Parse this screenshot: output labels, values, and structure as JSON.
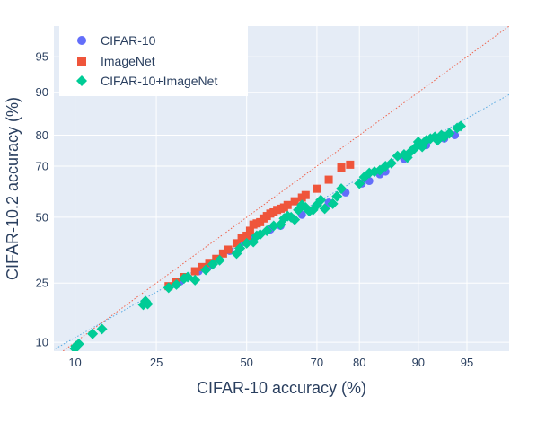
{
  "chart_data": {
    "type": "scatter",
    "title": "",
    "xlabel": "CIFAR-10 accuracy (%)",
    "ylabel": "CIFAR-10.2 accuracy (%)",
    "scale": "probit",
    "xlim": [
      7.5,
      97.5
    ],
    "ylim": [
      8.5,
      97.5
    ],
    "x_ticks": [
      10,
      25,
      50,
      70,
      80,
      90,
      95
    ],
    "y_ticks": [
      10,
      25,
      50,
      70,
      80,
      90,
      95
    ],
    "grid": true,
    "legend_position": "top-left",
    "colors": {
      "plot_bg": "#e5ecf6",
      "grid": "#ffffff",
      "text": "#2a3f5f",
      "cifar10": "#636efa",
      "imagenet": "#ef553b",
      "combined": "#00cc96",
      "identity_line": "#ef553b",
      "fit_line": "#4aa3df"
    },
    "reference_lines": [
      {
        "kind": "y=x",
        "style": "dotted"
      },
      {
        "kind": "linear fit",
        "style": "dotted"
      }
    ],
    "series": [
      {
        "name": "CIFAR-10",
        "marker": "circle",
        "points": [
          [
            30,
            24.5
          ],
          [
            31,
            25.5
          ],
          [
            36,
            29
          ],
          [
            39,
            31
          ],
          [
            45,
            36.5
          ],
          [
            49,
            40
          ],
          [
            51.5,
            41.5
          ],
          [
            57,
            45
          ],
          [
            60,
            46.5
          ],
          [
            66,
            51
          ],
          [
            73,
            56
          ],
          [
            77,
            60
          ],
          [
            80.5,
            63.5
          ],
          [
            82,
            64.5
          ],
          [
            84,
            67
          ],
          [
            85,
            68
          ],
          [
            88,
            72.5
          ],
          [
            91,
            77
          ],
          [
            93,
            79
          ],
          [
            94,
            80
          ]
        ]
      },
      {
        "name": "ImageNet",
        "marker": "square",
        "points": [
          [
            28,
            24
          ],
          [
            30,
            25.5
          ],
          [
            32,
            27
          ],
          [
            35,
            29
          ],
          [
            37,
            30.5
          ],
          [
            39,
            32
          ],
          [
            41,
            33.5
          ],
          [
            43,
            35.5
          ],
          [
            44.5,
            37
          ],
          [
            47,
            39.5
          ],
          [
            48.5,
            41.5
          ],
          [
            50,
            42.5
          ],
          [
            51,
            44.5
          ],
          [
            52,
            47
          ],
          [
            53,
            47.5
          ],
          [
            54,
            48
          ],
          [
            55,
            49.5
          ],
          [
            56,
            50.5
          ],
          [
            57,
            51.5
          ],
          [
            58,
            52
          ],
          [
            59,
            53
          ],
          [
            60,
            53.5
          ],
          [
            61,
            54
          ],
          [
            62,
            55
          ],
          [
            64,
            56.5
          ],
          [
            66,
            58
          ],
          [
            67,
            59
          ],
          [
            70,
            61.5
          ],
          [
            73,
            65
          ],
          [
            76,
            69.5
          ],
          [
            78,
            70.5
          ]
        ]
      },
      {
        "name": "CIFAR-10+ImageNet",
        "marker": "diamond",
        "points": [
          [
            10,
            8.9
          ],
          [
            10.1,
            9.3
          ],
          [
            10.5,
            9.7
          ],
          [
            12.5,
            11.6
          ],
          [
            14,
            12.6
          ],
          [
            22,
            18.5
          ],
          [
            22.5,
            19.5
          ],
          [
            23,
            18.7
          ],
          [
            28,
            23.5
          ],
          [
            30,
            24.5
          ],
          [
            32,
            26.5
          ],
          [
            33,
            27
          ],
          [
            35,
            26
          ],
          [
            38,
            29.5
          ],
          [
            40,
            31.5
          ],
          [
            42,
            33
          ],
          [
            47,
            35.5
          ],
          [
            48,
            37.5
          ],
          [
            50,
            39.5
          ],
          [
            52,
            40
          ],
          [
            53,
            42.5
          ],
          [
            54,
            43
          ],
          [
            56,
            44.5
          ],
          [
            58,
            46.5
          ],
          [
            60,
            47
          ],
          [
            61,
            49.5
          ],
          [
            62,
            50.5
          ],
          [
            63,
            50
          ],
          [
            64,
            49
          ],
          [
            65,
            53
          ],
          [
            66,
            55
          ],
          [
            67,
            54
          ],
          [
            68,
            52.5
          ],
          [
            69,
            53
          ],
          [
            70,
            55
          ],
          [
            71,
            57
          ],
          [
            72,
            53.5
          ],
          [
            74,
            55.5
          ],
          [
            75,
            58.5
          ],
          [
            76,
            61.5
          ],
          [
            80,
            63.5
          ],
          [
            81,
            66
          ],
          [
            82,
            67.5
          ],
          [
            83,
            68
          ],
          [
            84,
            68.5
          ],
          [
            85,
            70
          ],
          [
            86,
            71
          ],
          [
            87,
            73.5
          ],
          [
            88,
            74
          ],
          [
            88.5,
            73
          ],
          [
            89,
            75
          ],
          [
            89.5,
            76
          ],
          [
            90,
            78
          ],
          [
            90.5,
            76.5
          ],
          [
            91,
            78.5
          ],
          [
            91.5,
            79
          ],
          [
            92,
            79.5
          ],
          [
            92.3,
            78.5
          ],
          [
            92.7,
            80
          ],
          [
            93,
            79.5
          ],
          [
            93.5,
            80.5
          ],
          [
            94.2,
            82
          ],
          [
            94.5,
            82.5
          ]
        ]
      }
    ]
  }
}
